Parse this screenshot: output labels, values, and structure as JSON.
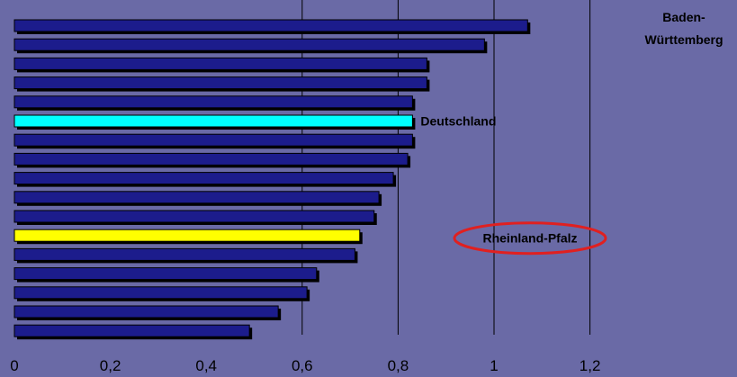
{
  "chart_data": {
    "type": "bar",
    "orientation": "horizontal",
    "title": "",
    "xlabel": "",
    "ylabel": "",
    "xlim": [
      0,
      1.2
    ],
    "x_ticks": [
      "0",
      "0,2",
      "0,4",
      "0,6",
      "0,8",
      "1",
      "1,2"
    ],
    "grid": "vertical lines at 0.6, 0.8, 1.0, 1.2",
    "values": [
      1.07,
      0.98,
      0.86,
      0.86,
      0.83,
      0.83,
      0.83,
      0.82,
      0.79,
      0.76,
      0.75,
      0.72,
      0.71,
      0.63,
      0.61,
      0.55,
      0.49
    ],
    "bar_colors": [
      "#1c1c8c",
      "#1c1c8c",
      "#1c1c8c",
      "#1c1c8c",
      "#1c1c8c",
      "#00ffff",
      "#1c1c8c",
      "#1c1c8c",
      "#1c1c8c",
      "#1c1c8c",
      "#1c1c8c",
      "#ffff00",
      "#1c1c8c",
      "#1c1c8c",
      "#1c1c8c",
      "#1c1c8c",
      "#1c1c8c"
    ],
    "annotations": [
      {
        "bar": 0,
        "lines": [
          "Baden-",
          "Württemberg"
        ]
      },
      {
        "bar": 5,
        "lines": [
          "Deutschland"
        ]
      },
      {
        "bar": 11,
        "lines": [
          "Rheinland-Pfalz"
        ],
        "circled": true
      }
    ],
    "colors": {
      "background": "#6a6aa6",
      "bar_default": "#1c1c8c",
      "highlight_germany": "#00ffff",
      "highlight_rlp": "#ffff00",
      "circle": "#e02020"
    }
  }
}
